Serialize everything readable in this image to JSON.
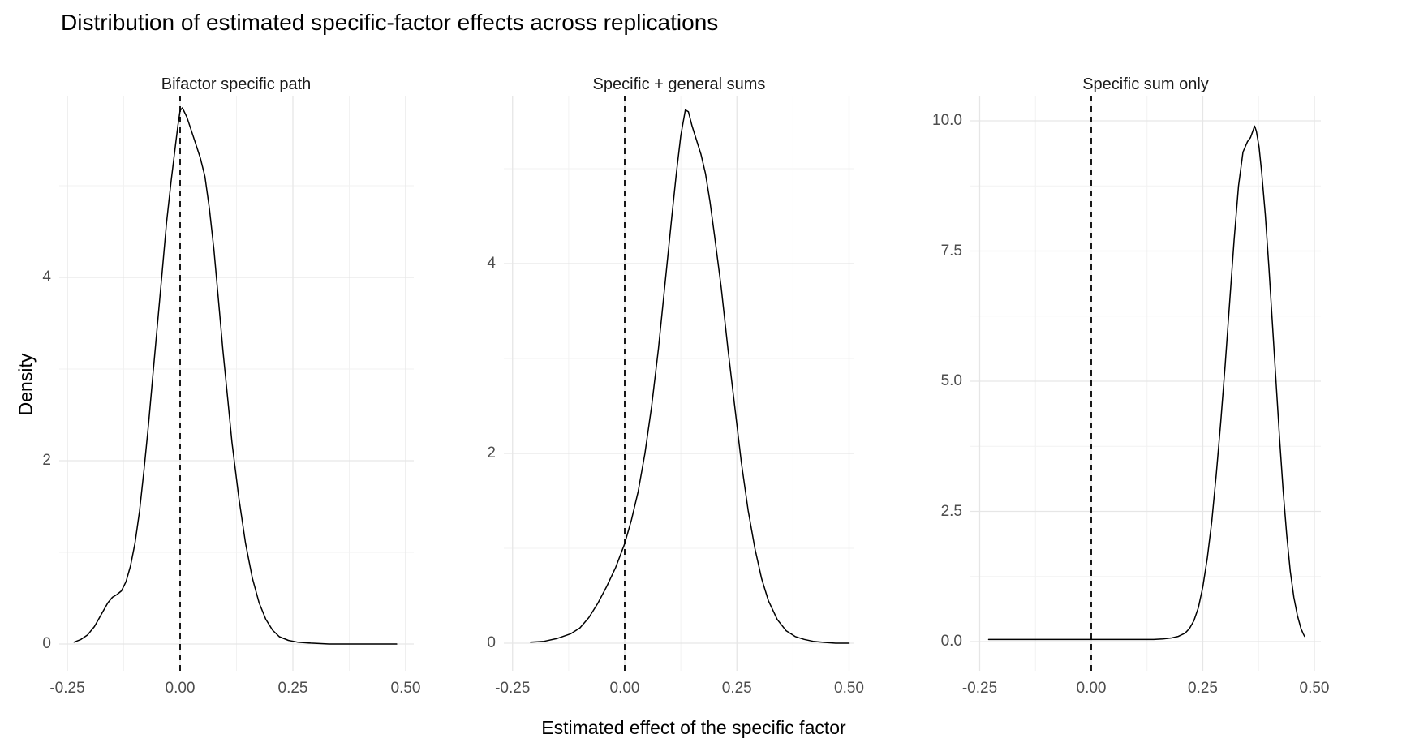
{
  "title": "Distribution of estimated specific-factor effects across replications",
  "x_axis_title": "Estimated effect of the specific factor",
  "y_axis_title": "Density",
  "colors": {
    "background": "#ffffff",
    "curve": "#000000",
    "reference_line": "#000000",
    "gridline_major": "#e6e6e6",
    "gridline_minor": "#f2f2f2",
    "axis_text": "#4d4d4d",
    "title_text": "#000000",
    "facet_text": "#1a1a1a"
  },
  "chart_data": [
    {
      "type": "line",
      "title": "Bifactor specific path",
      "xlabel": "Estimated effect of the specific factor",
      "ylabel": "Density",
      "xlim": [
        -0.27,
        0.52
      ],
      "ylim": [
        0,
        5.98
      ],
      "reference_line_x": 0.0,
      "x_ticks": {
        "values": [
          -0.25,
          0.0,
          0.25,
          0.5
        ],
        "labels": [
          "-0.25",
          "0.00",
          "0.25",
          "0.50"
        ]
      },
      "x_minor": [
        -0.125,
        0.125,
        0.375
      ],
      "y_ticks": {
        "values": [
          0,
          2,
          4
        ],
        "labels": [
          "0",
          "2",
          "4"
        ]
      },
      "y_minor": [
        1,
        3,
        5
      ],
      "peak": {
        "x": 0.005,
        "density": 5.85
      },
      "points": [
        [
          -0.235,
          0.02
        ],
        [
          -0.22,
          0.05
        ],
        [
          -0.205,
          0.1
        ],
        [
          -0.19,
          0.19
        ],
        [
          -0.175,
          0.32
        ],
        [
          -0.16,
          0.45
        ],
        [
          -0.15,
          0.51
        ],
        [
          -0.14,
          0.54
        ],
        [
          -0.13,
          0.58
        ],
        [
          -0.12,
          0.68
        ],
        [
          -0.11,
          0.85
        ],
        [
          -0.1,
          1.1
        ],
        [
          -0.09,
          1.45
        ],
        [
          -0.08,
          1.9
        ],
        [
          -0.07,
          2.4
        ],
        [
          -0.06,
          2.95
        ],
        [
          -0.05,
          3.5
        ],
        [
          -0.04,
          4.05
        ],
        [
          -0.03,
          4.6
        ],
        [
          -0.02,
          5.05
        ],
        [
          -0.01,
          5.45
        ],
        [
          -0.005,
          5.65
        ],
        [
          0.0,
          5.82
        ],
        [
          0.005,
          5.85
        ],
        [
          0.015,
          5.75
        ],
        [
          0.025,
          5.6
        ],
        [
          0.035,
          5.45
        ],
        [
          0.045,
          5.3
        ],
        [
          0.055,
          5.1
        ],
        [
          0.065,
          4.75
        ],
        [
          0.075,
          4.3
        ],
        [
          0.085,
          3.75
        ],
        [
          0.095,
          3.2
        ],
        [
          0.105,
          2.7
        ],
        [
          0.115,
          2.2
        ],
        [
          0.13,
          1.6
        ],
        [
          0.145,
          1.1
        ],
        [
          0.16,
          0.72
        ],
        [
          0.175,
          0.45
        ],
        [
          0.19,
          0.27
        ],
        [
          0.205,
          0.15
        ],
        [
          0.22,
          0.08
        ],
        [
          0.24,
          0.04
        ],
        [
          0.26,
          0.02
        ],
        [
          0.29,
          0.01
        ],
        [
          0.33,
          0.0
        ],
        [
          0.48,
          0.0
        ]
      ]
    },
    {
      "type": "line",
      "title": "Specific + general sums",
      "xlabel": "Estimated effect of the specific factor",
      "ylabel": "Density",
      "xlim": [
        -0.27,
        0.52
      ],
      "ylim": [
        0,
        5.75
      ],
      "reference_line_x": 0.0,
      "x_ticks": {
        "values": [
          -0.25,
          0.0,
          0.25,
          0.5
        ],
        "labels": [
          "-0.25",
          "0.00",
          "0.25",
          "0.50"
        ]
      },
      "x_minor": [
        -0.125,
        0.125,
        0.375
      ],
      "y_ticks": {
        "values": [
          0,
          2,
          4
        ],
        "labels": [
          "0",
          "2",
          "4"
        ]
      },
      "y_minor": [
        1,
        3,
        5
      ],
      "peak": {
        "x": 0.135,
        "density": 5.62
      },
      "points": [
        [
          -0.21,
          0.01
        ],
        [
          -0.18,
          0.02
        ],
        [
          -0.15,
          0.05
        ],
        [
          -0.12,
          0.1
        ],
        [
          -0.1,
          0.16
        ],
        [
          -0.08,
          0.27
        ],
        [
          -0.06,
          0.42
        ],
        [
          -0.04,
          0.6
        ],
        [
          -0.02,
          0.8
        ],
        [
          0.0,
          1.05
        ],
        [
          0.015,
          1.3
        ],
        [
          0.03,
          1.6
        ],
        [
          0.045,
          2.0
        ],
        [
          0.06,
          2.5
        ],
        [
          0.075,
          3.1
        ],
        [
          0.09,
          3.8
        ],
        [
          0.105,
          4.5
        ],
        [
          0.115,
          4.95
        ],
        [
          0.125,
          5.35
        ],
        [
          0.135,
          5.62
        ],
        [
          0.142,
          5.6
        ],
        [
          0.15,
          5.45
        ],
        [
          0.16,
          5.3
        ],
        [
          0.17,
          5.15
        ],
        [
          0.18,
          4.95
        ],
        [
          0.19,
          4.65
        ],
        [
          0.2,
          4.3
        ],
        [
          0.215,
          3.75
        ],
        [
          0.23,
          3.1
        ],
        [
          0.245,
          2.5
        ],
        [
          0.26,
          1.9
        ],
        [
          0.275,
          1.4
        ],
        [
          0.29,
          1.0
        ],
        [
          0.305,
          0.68
        ],
        [
          0.32,
          0.45
        ],
        [
          0.34,
          0.25
        ],
        [
          0.36,
          0.13
        ],
        [
          0.38,
          0.07
        ],
        [
          0.4,
          0.04
        ],
        [
          0.42,
          0.02
        ],
        [
          0.44,
          0.01
        ],
        [
          0.47,
          0.0
        ],
        [
          0.5,
          0.0
        ]
      ]
    },
    {
      "type": "line",
      "title": "Specific sum only",
      "xlabel": "Estimated effect of the specific factor",
      "ylabel": "Density",
      "xlim": [
        -0.27,
        0.52
      ],
      "ylim": [
        0,
        10.4
      ],
      "reference_line_x": 0.0,
      "x_ticks": {
        "values": [
          -0.25,
          0.0,
          0.25,
          0.5
        ],
        "labels": [
          "-0.25",
          "0.00",
          "0.25",
          "0.50"
        ]
      },
      "x_minor": [
        -0.125,
        0.125,
        0.375
      ],
      "y_ticks": {
        "values": [
          0,
          2.5,
          5,
          7.5,
          10
        ],
        "labels": [
          "0.0",
          "2.5",
          "5.0",
          "7.5",
          "10.0"
        ]
      },
      "y_minor": [
        1.25,
        3.75,
        6.25,
        8.75
      ],
      "peak": {
        "x": 0.365,
        "density": 9.9
      },
      "points": [
        [
          -0.23,
          0.04
        ],
        [
          -0.1,
          0.04
        ],
        [
          0.0,
          0.04
        ],
        [
          0.1,
          0.04
        ],
        [
          0.14,
          0.04
        ],
        [
          0.16,
          0.05
        ],
        [
          0.18,
          0.07
        ],
        [
          0.195,
          0.1
        ],
        [
          0.21,
          0.16
        ],
        [
          0.22,
          0.25
        ],
        [
          0.23,
          0.4
        ],
        [
          0.24,
          0.65
        ],
        [
          0.25,
          1.05
        ],
        [
          0.26,
          1.6
        ],
        [
          0.27,
          2.3
        ],
        [
          0.28,
          3.2
        ],
        [
          0.29,
          4.2
        ],
        [
          0.3,
          5.3
        ],
        [
          0.31,
          6.5
        ],
        [
          0.32,
          7.7
        ],
        [
          0.33,
          8.75
        ],
        [
          0.34,
          9.4
        ],
        [
          0.35,
          9.6
        ],
        [
          0.357,
          9.68
        ],
        [
          0.362,
          9.8
        ],
        [
          0.366,
          9.9
        ],
        [
          0.37,
          9.8
        ],
        [
          0.376,
          9.5
        ],
        [
          0.382,
          9.0
        ],
        [
          0.39,
          8.2
        ],
        [
          0.398,
          7.2
        ],
        [
          0.406,
          6.1
        ],
        [
          0.414,
          5.0
        ],
        [
          0.422,
          3.9
        ],
        [
          0.43,
          2.9
        ],
        [
          0.438,
          2.05
        ],
        [
          0.446,
          1.35
        ],
        [
          0.454,
          0.85
        ],
        [
          0.462,
          0.5
        ],
        [
          0.47,
          0.25
        ],
        [
          0.475,
          0.15
        ],
        [
          0.478,
          0.1
        ]
      ]
    }
  ]
}
